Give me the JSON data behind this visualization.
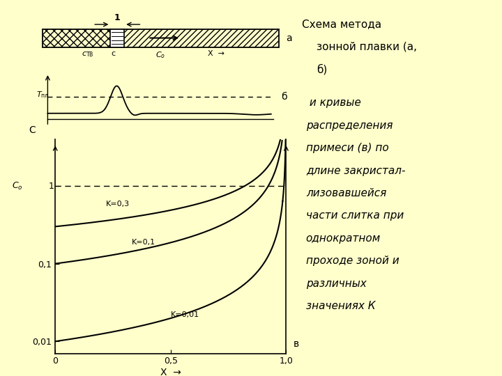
{
  "bg_color": "#FFFFCC",
  "fig_width": 7.2,
  "fig_height": 5.4,
  "dpi": 100,
  "title_line1": "Схема метода",
  "title_line2": "зонной плавки (а,",
  "title_line3": "б)",
  "italic_lines": [
    " и кривые",
    "распределения",
    "примеси (в) по",
    "длине закристал-",
    "лизовавшейся",
    "части слитка при",
    "однократном",
    "проходе зоной и",
    "различных",
    "значениях К"
  ],
  "panel_a_label": "а",
  "panel_b_label": "б",
  "panel_v_label": "в",
  "label_1": "1",
  "label_ctv": "c",
  "label_c": "c",
  "label_co": "C",
  "label_x_arrow": "X",
  "label_tpl": "T",
  "label_C_axis": "C",
  "label_Co_axis": "C",
  "x_tick_labels": [
    "0",
    "0,5",
    "1,0"
  ],
  "ytick_labels": [
    "0,01",
    "0,1",
    ""
  ],
  "k_labels": [
    "K=0,3",
    "K=0,1",
    "K=0,01"
  ],
  "K_values": [
    0.3,
    0.1,
    0.01
  ]
}
